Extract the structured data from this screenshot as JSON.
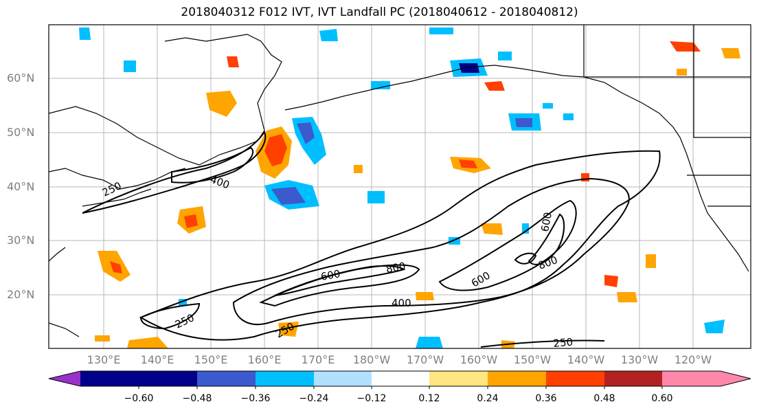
{
  "title": "2018040312 F012 IVT, IVT Landfall PC (2018040612 - 2018040812)",
  "lat_labels": [
    "60°N",
    "50°N",
    "40°N",
    "30°N",
    "20°N"
  ],
  "lon_labels": [
    "130°E",
    "140°E",
    "150°E",
    "160°E",
    "170°E",
    "180°W",
    "170°W",
    "160°W",
    "150°W",
    "140°W",
    "130°W",
    "120°W"
  ],
  "contour_labels": [
    "250",
    "400",
    "250",
    "600",
    "800",
    "400",
    "250",
    "600",
    "800",
    "600",
    "250"
  ],
  "colorbar": {
    "ticks": [
      "−0.60",
      "−0.48",
      "−0.36",
      "−0.24",
      "−0.12",
      "0.12",
      "0.24",
      "0.36",
      "0.48",
      "0.60"
    ],
    "colors": [
      "#9932cc",
      "#00008b",
      "#3a5acd",
      "#00bfff",
      "#b0e2ff",
      "#ffffff",
      "#ffe680",
      "#ffa500",
      "#ff4000",
      "#b22222",
      "#ff88aa"
    ]
  },
  "colors": {
    "land_outline": "#000000",
    "grid": "#999999",
    "axis_label": "#7f7f7f"
  }
}
